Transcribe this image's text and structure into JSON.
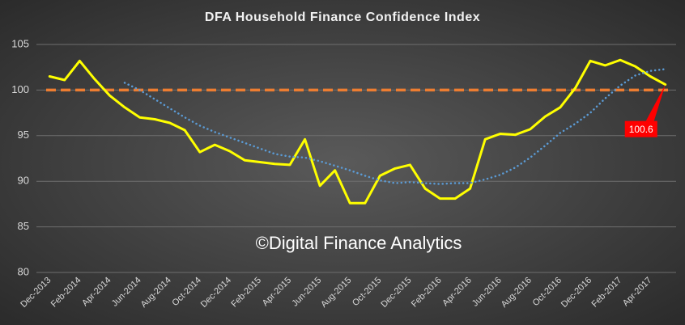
{
  "chart_data": {
    "type": "line",
    "title": "DFA Household Finance Confidence Index",
    "annotation": "©Digital Finance Analytics",
    "categories": [
      "Dec-2013",
      null,
      "Feb-2014",
      null,
      "Apr-2014",
      null,
      "Jun-2014",
      null,
      "Aug-2014",
      null,
      "Oct-2014",
      null,
      "Dec-2014",
      null,
      "Feb-2015",
      null,
      "Apr-2015",
      null,
      "Jun-2015",
      null,
      "Aug-2015",
      null,
      "Oct-2015",
      null,
      "Dec-2015",
      null,
      "Feb-2016",
      null,
      "Apr-2016",
      null,
      "Jun-2016",
      null,
      "Aug-2016",
      null,
      "Oct-2016",
      null,
      "Dec-2016",
      null,
      "Feb-2017",
      null,
      "Apr-2017",
      null
    ],
    "series": [
      {
        "color": "#ffff00",
        "style": "solid",
        "values": [
          101.5,
          101.1,
          103.2,
          101.2,
          99.4,
          98.1,
          97.0,
          96.8,
          96.4,
          95.6,
          93.2,
          94.0,
          93.3,
          92.3,
          92.1,
          91.9,
          91.8,
          94.6,
          89.5,
          91.2,
          87.6,
          87.6,
          90.6,
          91.4,
          91.8,
          89.2,
          88.1,
          88.1,
          89.2,
          94.6,
          95.2,
          95.1,
          95.7,
          97.1,
          98.1,
          100.2,
          103.2,
          102.7,
          103.3,
          102.6,
          101.5,
          100.6
        ],
        "value_labels": [
          null,
          null,
          null,
          null,
          null,
          null,
          null,
          null,
          null,
          null,
          null,
          null,
          null,
          null,
          null,
          null,
          null,
          null,
          null,
          null,
          null,
          null,
          null,
          null,
          null,
          null,
          null,
          null,
          null,
          null,
          null,
          null,
          null,
          null,
          null,
          null,
          null,
          null,
          null,
          null,
          null,
          "100.6"
        ]
      },
      {
        "color": "#5b9bd5",
        "style": "dotted",
        "values": [
          null,
          null,
          null,
          null,
          null,
          100.8,
          100.0,
          99.0,
          98.0,
          97.0,
          96.1,
          95.4,
          94.8,
          94.2,
          93.6,
          93.0,
          92.7,
          92.6,
          92.2,
          91.7,
          91.2,
          90.6,
          90.1,
          89.8,
          89.9,
          89.8,
          89.7,
          89.8,
          89.8,
          90.2,
          90.7,
          91.5,
          92.6,
          93.9,
          95.3,
          96.3,
          97.5,
          99.1,
          100.5,
          101.6,
          102.1,
          102.3
        ]
      }
    ],
    "reference_line": {
      "value": 100,
      "color": "#ed7d31"
    },
    "callout_color": "#ff0000",
    "ylim": [
      80,
      105
    ],
    "yticks": [
      80,
      85,
      90,
      95,
      100,
      105
    ],
    "grid": true
  }
}
